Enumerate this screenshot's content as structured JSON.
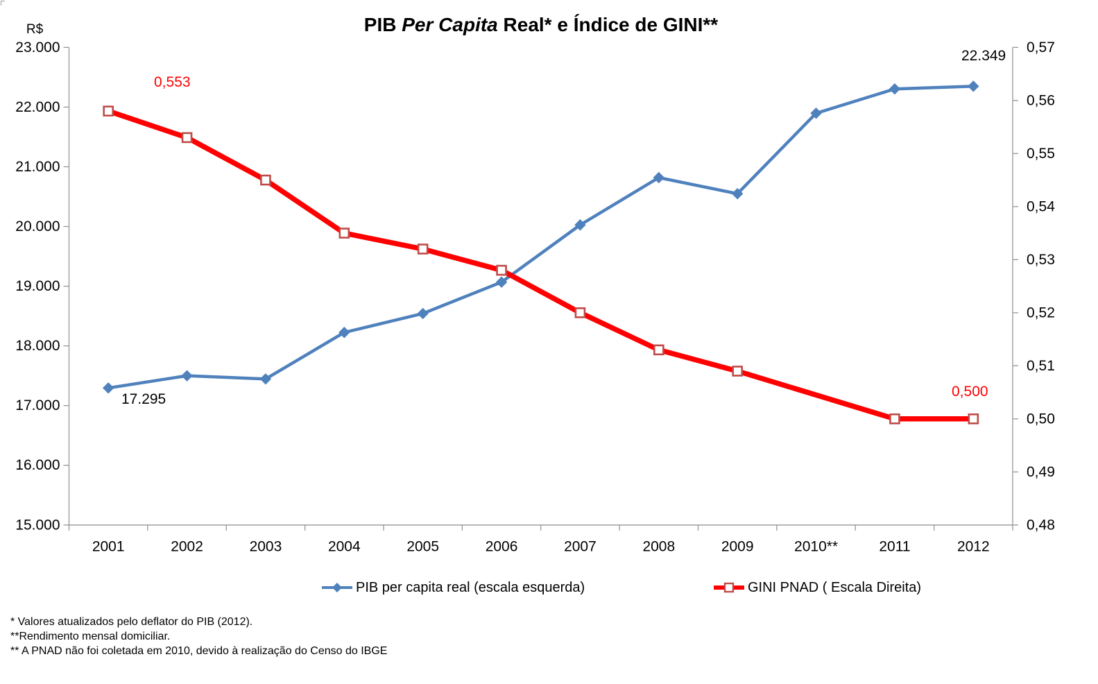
{
  "title": {
    "part1": "PIB ",
    "part2_italic": "Per Capita",
    "part3": " Real* e Índice de GINI**"
  },
  "left_axis": {
    "unit_label": "R$",
    "ticks": [
      "23.000",
      "22.000",
      "21.000",
      "20.000",
      "19.000",
      "18.000",
      "17.000",
      "16.000",
      "15.000"
    ]
  },
  "right_axis": {
    "ticks": [
      "0,57",
      "0,56",
      "0,55",
      "0,54",
      "0,53",
      "0,52",
      "0,51",
      "0,50",
      "0,49",
      "0,48"
    ]
  },
  "x_axis": {
    "labels": [
      "2001",
      "2002",
      "2003",
      "2004",
      "2005",
      "2006",
      "2007",
      "2008",
      "2009",
      "2010**",
      "2011",
      "2012"
    ]
  },
  "legend": [
    {
      "label": "PIB per capita real (escala esquerda)"
    },
    {
      "label": "GINI PNAD ( Escala Direita)"
    }
  ],
  "annotations": {
    "gini_2002": "0,553",
    "gini_2012": "0,500",
    "pib_2001": "17.295",
    "pib_2012": "22.349"
  },
  "footnotes": [
    "* Valores atualizados pelo deflator do PIB (2012).",
    "**Rendimento mensal domiciliar.",
    "** A PNAD não foi coletada em 2010, devido à realização do Censo do IBGE"
  ],
  "chart_data": {
    "type": "line",
    "title": "PIB Per Capita Real* e Índice de GINI**",
    "categories": [
      "2001",
      "2002",
      "2003",
      "2004",
      "2005",
      "2006",
      "2007",
      "2008",
      "2009",
      "2010**",
      "2011",
      "2012"
    ],
    "series": [
      {
        "name": "PIB per capita real (escala esquerda)",
        "axis": "left",
        "color": "#4F81BD",
        "marker": "diamond",
        "values": [
          17295,
          17500,
          17446,
          18225,
          18542,
          19068,
          20026,
          20819,
          20549,
          21897,
          22304,
          22349
        ]
      },
      {
        "name": "GINI PNAD ( Escala Direita)",
        "axis": "right",
        "color": "#FF0000",
        "marker": "square",
        "marker_border": "#BE4B48",
        "values": [
          0.558,
          0.553,
          0.545,
          0.535,
          0.532,
          0.528,
          0.52,
          0.513,
          0.509,
          null,
          0.5,
          0.5
        ]
      }
    ],
    "left_axis_range": [
      15000,
      23000
    ],
    "right_axis_range": [
      0.48,
      0.57
    ],
    "left_axis_label": "R$",
    "grid": false,
    "legend_position": "bottom",
    "notes": "GINI has no data point for 2010 (PNAD not collected); line connects 2009 to 2011"
  }
}
